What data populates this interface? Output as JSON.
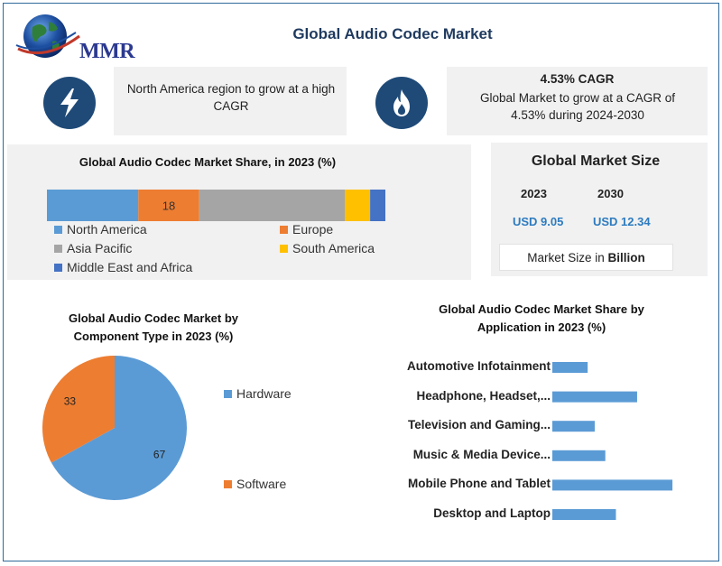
{
  "header": {
    "logo_text": "MMR",
    "title": "Global Audio Codec Market"
  },
  "info_cards": [
    {
      "icon": "lightning-icon",
      "text": "North America region to grow at a high CAGR"
    },
    {
      "icon": "flame-icon",
      "title": "4.53% CAGR",
      "text": "Global Market to grow at a CAGR of 4.53% during 2024-2030"
    }
  ],
  "market_size": {
    "title": "Global Market Size",
    "years": [
      "2023",
      "2030"
    ],
    "values": [
      "USD 9.05",
      "USD 12.34"
    ],
    "note_prefix": "Market Size in ",
    "note_unit": "Billion"
  },
  "colors": {
    "north_america": "#5b9bd5",
    "europe": "#ed7d31",
    "asia_pacific": "#a5a5a5",
    "south_america": "#ffc000",
    "mea": "#4472c4",
    "bar": "#5b9bd5",
    "dark_blue": "#1f4a78"
  },
  "chart_data": [
    {
      "type": "bar",
      "stacked": true,
      "orientation": "horizontal",
      "title": "Global Audio Codec Market Share, in 2023 (%)",
      "series": [
        {
          "name": "North America",
          "value": 27,
          "color": "#5b9bd5",
          "label": ""
        },
        {
          "name": "Europe",
          "value": 18,
          "color": "#ed7d31",
          "label": "18"
        },
        {
          "name": "Asia Pacific",
          "value": 43,
          "color": "#a5a5a5",
          "label": ""
        },
        {
          "name": "South America",
          "value": 7.5,
          "color": "#ffc000",
          "label": ""
        },
        {
          "name": "Middle East and Africa",
          "value": 4.5,
          "color": "#4472c4",
          "label": ""
        }
      ],
      "xlim": [
        0,
        100
      ],
      "legend": "bottom"
    },
    {
      "type": "pie",
      "title": "Global Audio Codec Market by Component Type in 2023 (%)",
      "title_lines": [
        "Global Audio Codec Market by",
        "Component Type in 2023 (%)"
      ],
      "categories": [
        "Hardware",
        "Software"
      ],
      "values": [
        67,
        33
      ],
      "colors": [
        "#5b9bd5",
        "#ed7d31"
      ],
      "legend": "right"
    },
    {
      "type": "bar",
      "orientation": "horizontal",
      "title": "Global Audio Codec Market Share by Application in 2023 (%)",
      "title_lines": [
        "Global Audio Codec Market Share by",
        "Application in 2023 (%)"
      ],
      "categories": [
        "Automotive Infotainment",
        "Headphone, Headset,...",
        "Television and Gaming...",
        "Music & Media Device...",
        "Mobile Phone and Tablet",
        "Desktop and Laptop"
      ],
      "values": [
        5,
        12,
        6,
        7.5,
        17,
        9
      ],
      "color": "#5b9bd5"
    }
  ]
}
